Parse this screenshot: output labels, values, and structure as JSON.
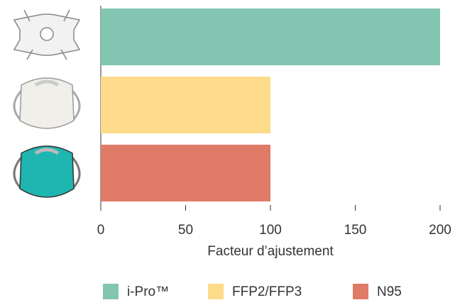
{
  "chart_data": {
    "type": "bar",
    "orientation": "horizontal",
    "x_label": "Facteur d’ajustement",
    "categories": [
      null,
      null,
      null
    ],
    "series": [
      {
        "name": "i-Pro™",
        "color": "#82c5b1",
        "values": [
          200,
          null,
          null
        ]
      },
      {
        "name": "FFP2/FFP3",
        "color": "#fedb8b",
        "values": [
          null,
          100,
          null
        ]
      },
      {
        "name": "N95",
        "color": "#e07b67",
        "values": [
          null,
          null,
          100
        ]
      }
    ],
    "xlim": [
      0,
      200
    ],
    "xticks": [
      0,
      50,
      100,
      150,
      200
    ],
    "grid": false,
    "legend": "bottom"
  }
}
